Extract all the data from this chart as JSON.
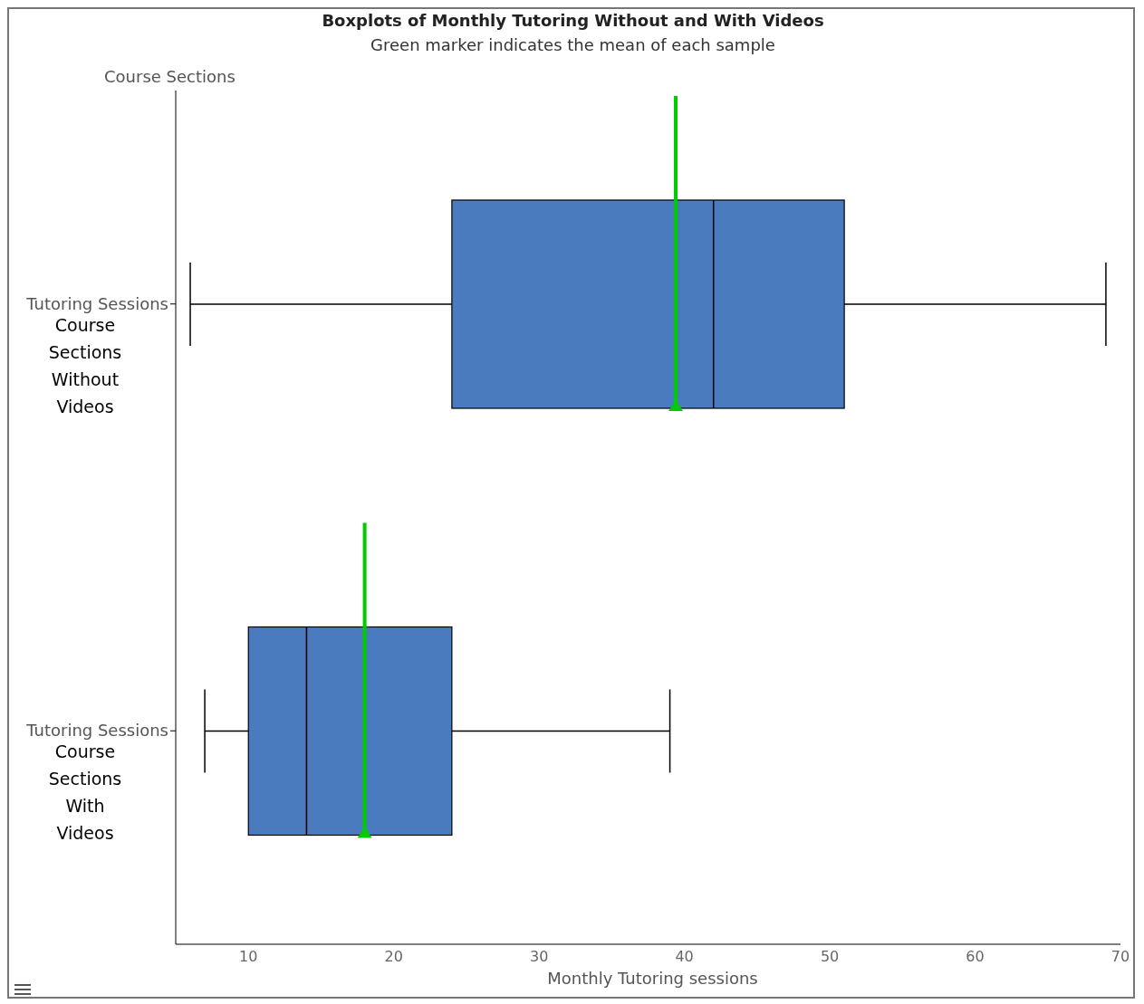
{
  "chart_data": {
    "type": "box",
    "title": "Boxplots of Monthly Tutoring Without and With Videos",
    "subtitle": "Green marker indicates the mean of each sample",
    "xlabel": "Monthly Tutoring sessions",
    "ylabel": "Course Sections",
    "orientation": "horizontal",
    "categories": [
      "Tutoring Sessions",
      "Tutoring Sessions"
    ],
    "annotations": [
      "Course Sections Without Videos",
      "Course Sections With Videos"
    ],
    "series": [
      {
        "color": "#4a7bbf",
        "boxes": [
          {
            "low": 6,
            "q1": 24,
            "median": 42,
            "q3": 51,
            "high": 69,
            "mean": 39.4
          },
          {
            "low": 7,
            "q1": 10,
            "median": 14,
            "q3": 24,
            "high": 39,
            "mean": 18
          }
        ]
      }
    ],
    "xlim": [
      5,
      70
    ],
    "xticks": [
      10,
      20,
      30,
      40,
      50,
      60,
      70
    ],
    "grid": false,
    "legend": false
  }
}
